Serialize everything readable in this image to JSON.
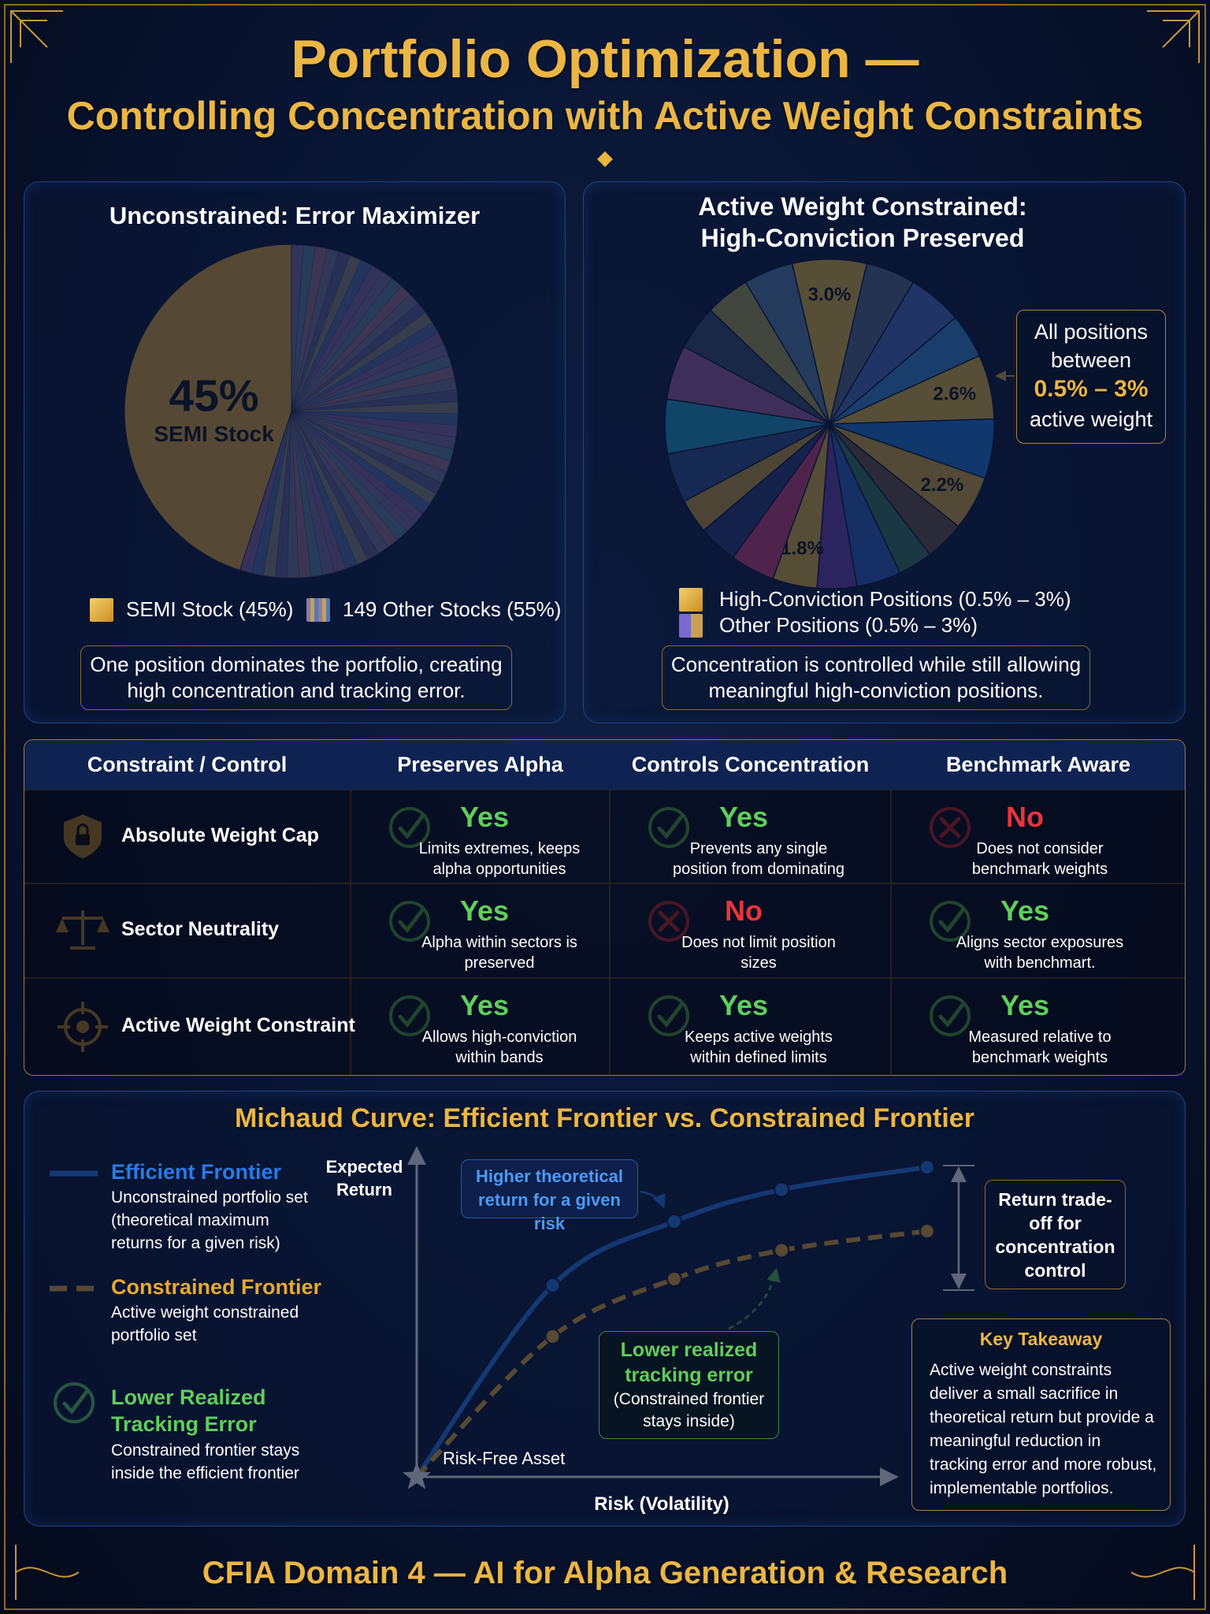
{
  "header": {
    "title": "Portfolio Optimization —",
    "subtitle": "Controlling Concentration with Active Weight Constraints"
  },
  "chart_data": [
    {
      "type": "pie",
      "title": "Unconstrained: Error Maximizer",
      "categories": [
        "SEMI Stock",
        "149 Other Stocks"
      ],
      "values": [
        45,
        55
      ],
      "value_labels": [
        "45%",
        null
      ],
      "colors": [
        "#e2a938",
        "#6c6890"
      ],
      "legend": [
        "SEMI Stock (45%)",
        "149 Other Stocks (55%)"
      ],
      "note": "One position dominates the portfolio, creating high concentration and tracking error."
    },
    {
      "type": "pie",
      "title": "Active Weight Constrained: High-Conviction Preserved",
      "values": [
        3.0,
        2.0,
        2.2,
        1.8,
        2.6,
        2.4,
        2.2,
        1.6,
        1.4,
        1.8,
        1.6,
        1.8,
        1.8,
        1.6,
        1.4,
        2.0,
        2.2,
        2.2,
        1.8,
        1.8,
        2.0
      ],
      "value_labels": [
        "3.0%",
        null,
        null,
        null,
        "2.6%",
        null,
        "2.2%",
        null,
        null,
        null,
        null,
        "1.8%",
        null,
        null,
        null,
        null,
        null,
        null,
        null,
        null,
        null
      ],
      "colors": [
        "#e8b840",
        "#5a6a8c",
        "#4a6fc0",
        "#3a8ad0",
        "#e8b840",
        "#1f78d8",
        "#d9a93a",
        "#6b5040",
        "#3a7a60",
        "#2e5fc0",
        "#6a3fb0",
        "#e6b43c",
        "#d0407a",
        "#2c3a78",
        "#c89a38",
        "#2f4f8a",
        "#1f9fc8",
        "#a05fa0",
        "#3a4a6a",
        "#a8a050",
        "#5880a8"
      ],
      "legend": [
        "High-Conviction Positions (0.5% – 3%)",
        "Other Positions (0.5% – 3%)"
      ],
      "callout": {
        "text": "All positions between",
        "range": "0.5% – 3%",
        "unit": "active weight"
      },
      "note": "Concentration is controlled while still allowing meaningful high-conviction positions."
    },
    {
      "type": "line",
      "title": "Michaud Curve: Efficient Frontier vs. Constrained Frontier",
      "x_label": "Risk (Volatility)",
      "y_label": "Expected Return",
      "x": [
        0,
        2.85,
        5.4,
        7.65,
        10.7
      ],
      "xlim": [
        0,
        11
      ],
      "ylim": [
        0,
        10
      ],
      "series": [
        {
          "name": "Efficient Frontier",
          "color": "#2a7ae8",
          "dash": false,
          "description": "Unconstrained portfolio set (theoretical maximum returns for a given risk)",
          "values": [
            0,
            6.0,
            8.0,
            9.0,
            9.7
          ]
        },
        {
          "name": "Constrained Frontier",
          "color": "#e8a930",
          "dash": true,
          "description": "Active weight constrained portfolio set",
          "values": [
            0,
            4.4,
            6.2,
            7.1,
            7.7
          ]
        }
      ],
      "extra_legend": {
        "name": "Lower Realized Tracking Error",
        "description": "Constrained frontier stays inside the efficient frontier"
      },
      "origin_label": "Risk-Free Asset",
      "callouts": {
        "higher_return": "Higher theoretical return for a given risk",
        "lower_te_title": "Lower realized tracking error",
        "lower_te_note": "(Constrained frontier stays inside)",
        "trade_off": "Return trade-off for concentration control"
      },
      "takeaway": {
        "title": "Key Takeaway",
        "text": "Active weight constraints deliver a small sacrifice in theoretical return but provide a meaningful reduction in tracking error and more robust, implementable portfolios."
      }
    }
  ],
  "table": {
    "header": [
      "Constraint / Control",
      "Preserves Alpha",
      "Controls Concentration",
      "Benchmark Aware"
    ],
    "rows": [
      {
        "label": "Absolute Weight Cap",
        "cells": [
          {
            "status": "Yes",
            "pass": true,
            "text": "Limits extremes, keeps alpha opportunities"
          },
          {
            "status": "Yes",
            "pass": true,
            "text": "Prevents any single position from dominating"
          },
          {
            "status": "No",
            "pass": false,
            "text": "Does not consider benchmark weights"
          }
        ]
      },
      {
        "label": "Sector Neutrality",
        "cells": [
          {
            "status": "Yes",
            "pass": true,
            "text": "Alpha within sectors is preserved"
          },
          {
            "status": "No",
            "pass": false,
            "text": "Does not limit position sizes"
          },
          {
            "status": "Yes",
            "pass": true,
            "text": "Aligns sector exposures with benchmart."
          }
        ]
      },
      {
        "label": "Active Weight Constraint",
        "cells": [
          {
            "status": "Yes",
            "pass": true,
            "text": "Allows high-conviction within bands"
          },
          {
            "status": "Yes",
            "pass": true,
            "text": "Keeps active weights within defined limits"
          },
          {
            "status": "Yes",
            "pass": true,
            "text": "Measured relative to benchmark weights"
          }
        ]
      }
    ]
  },
  "footer": "CFIA Domain 4 — AI for Alpha Generation & Research"
}
